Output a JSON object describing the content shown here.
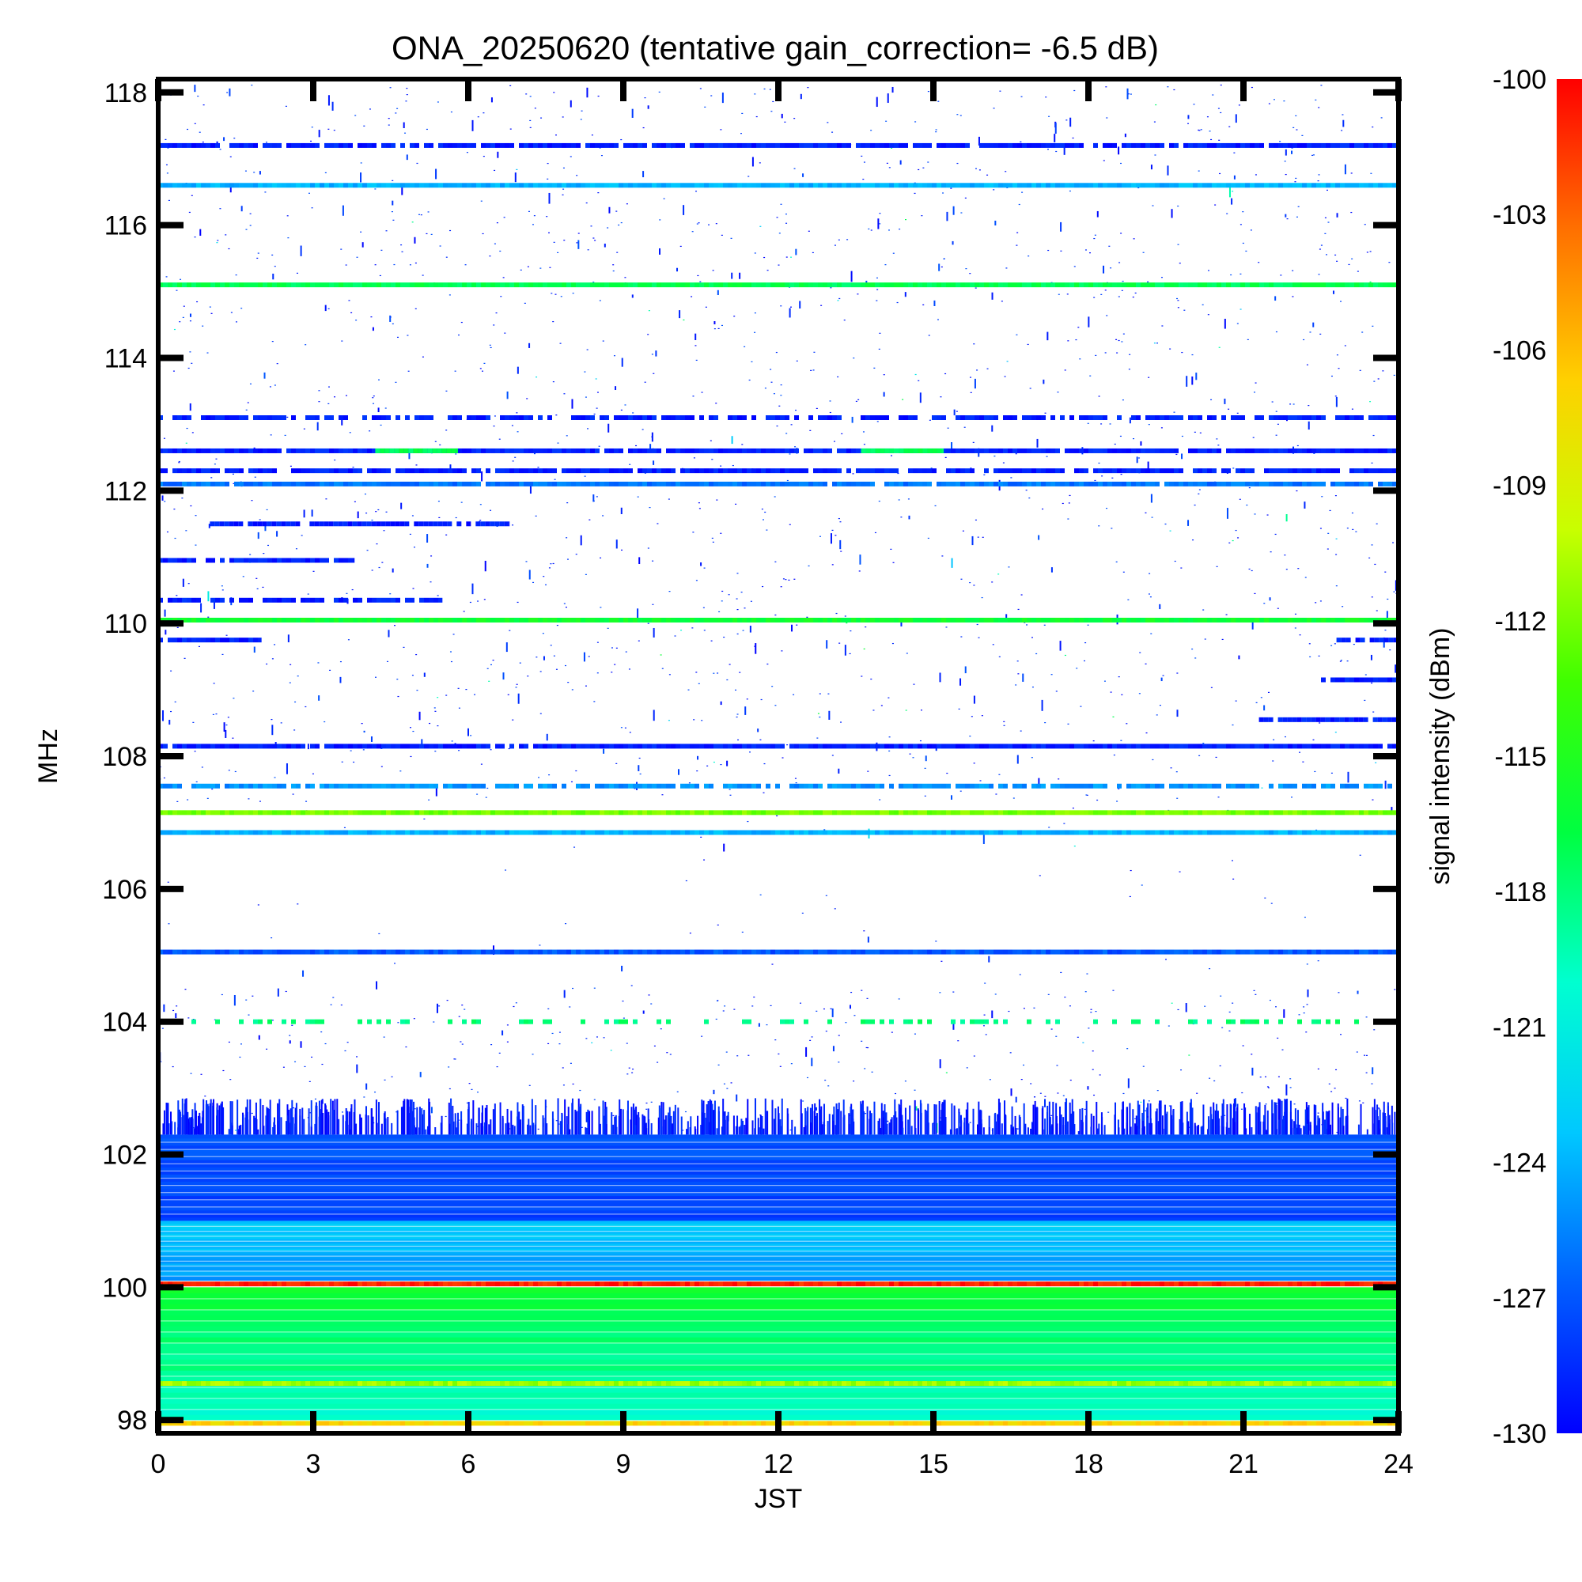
{
  "chart_data": {
    "type": "heatmap",
    "title": "ONA_20250620 (tentative gain_correction= -6.5 dB)",
    "xlabel": "JST",
    "ylabel": "MHz",
    "colorbar_label": "signal intensity (dBm)",
    "xlim": [
      0,
      24
    ],
    "ylim": [
      97.8,
      118.2
    ],
    "x_ticks": [
      "0",
      "3",
      "6",
      "9",
      "12",
      "15",
      "18",
      "21",
      "24"
    ],
    "y_ticks": [
      "98",
      "100",
      "102",
      "104",
      "106",
      "108",
      "110",
      "112",
      "114",
      "116",
      "118"
    ],
    "colorbar_range": [
      -130,
      -100
    ],
    "colorbar_ticks": [
      "-100",
      "-103",
      "-106",
      "-109",
      "-112",
      "-115",
      "-118",
      "-121",
      "-124",
      "-127",
      "-130"
    ],
    "colormap": [
      "#0000ff",
      "#0060ff",
      "#00c8ff",
      "#00ffd0",
      "#00ff40",
      "#40ff00",
      "#c8ff00",
      "#ffd000",
      "#ff7000",
      "#ff0000"
    ],
    "bands": [
      {
        "freq": 116.6,
        "level": -124,
        "coverage": 1.0,
        "t0": 0,
        "t1": 24
      },
      {
        "freq": 117.2,
        "level": -129,
        "coverage": 0.9,
        "t0": 0,
        "t1": 24
      },
      {
        "freq": 115.1,
        "level": -117,
        "coverage": 1.0,
        "t0": 0,
        "t1": 24
      },
      {
        "freq": 112.6,
        "level": -129,
        "coverage": 0.95,
        "t0": 0,
        "t1": 24
      },
      {
        "freq": 112.6,
        "level": -117,
        "coverage": 1.0,
        "t0": 4.2,
        "t1": 5.8
      },
      {
        "freq": 112.6,
        "level": -117,
        "coverage": 1.0,
        "t0": 13.6,
        "t1": 15.2
      },
      {
        "freq": 112.3,
        "level": -129,
        "coverage": 0.85,
        "t0": 0,
        "t1": 24
      },
      {
        "freq": 112.1,
        "level": -126,
        "coverage": 0.95,
        "t0": 0,
        "t1": 24
      },
      {
        "freq": 113.1,
        "level": -129,
        "coverage": 0.7,
        "t0": 0,
        "t1": 24
      },
      {
        "freq": 110.05,
        "level": -116,
        "coverage": 1.0,
        "t0": 0,
        "t1": 24
      },
      {
        "freq": 111.5,
        "level": -129,
        "coverage": 0.9,
        "t0": 1.0,
        "t1": 6.8
      },
      {
        "freq": 110.95,
        "level": -129,
        "coverage": 0.9,
        "t0": 0,
        "t1": 3.8
      },
      {
        "freq": 110.35,
        "level": -129,
        "coverage": 0.8,
        "t0": 0,
        "t1": 5.5
      },
      {
        "freq": 109.75,
        "level": -129,
        "coverage": 0.9,
        "t0": 0,
        "t1": 2.0
      },
      {
        "freq": 109.75,
        "level": -129,
        "coverage": 0.9,
        "t0": 22.8,
        "t1": 24
      },
      {
        "freq": 109.15,
        "level": -129,
        "coverage": 0.9,
        "t0": 22.5,
        "t1": 24
      },
      {
        "freq": 108.55,
        "level": -129,
        "coverage": 0.9,
        "t0": 21.3,
        "t1": 24
      },
      {
        "freq": 108.15,
        "level": -129,
        "coverage": 0.95,
        "t0": 0,
        "t1": 24
      },
      {
        "freq": 107.55,
        "level": -125,
        "coverage": 0.8,
        "t0": 0,
        "t1": 24
      },
      {
        "freq": 107.15,
        "level": -112,
        "coverage": 1.0,
        "t0": 0,
        "t1": 24
      },
      {
        "freq": 106.85,
        "level": -124,
        "coverage": 1.0,
        "t0": 0,
        "t1": 24
      },
      {
        "freq": 105.05,
        "level": -127,
        "coverage": 1.0,
        "t0": 0,
        "t1": 24
      },
      {
        "freq": 104.0,
        "level": -118,
        "coverage": 0.35,
        "t0": 0,
        "t1": 24
      },
      {
        "freq": 100.05,
        "level": -101,
        "coverage": 1.0,
        "t0": 0,
        "t1": 24
      },
      {
        "freq": 98.55,
        "level": -111,
        "coverage": 1.0,
        "t0": 0,
        "t1": 24
      },
      {
        "freq": 97.95,
        "level": -107,
        "coverage": 1.0,
        "t0": 0,
        "t1": 24
      }
    ],
    "broad_regions": [
      {
        "f0": 101.0,
        "f1": 102.3,
        "level_low": -128,
        "level_high": -127
      },
      {
        "f0": 100.1,
        "f1": 101.0,
        "level_low": -125,
        "level_high": -123
      },
      {
        "f0": 98.0,
        "f1": 100.0,
        "level_low": -120,
        "level_high": -116
      }
    ]
  }
}
